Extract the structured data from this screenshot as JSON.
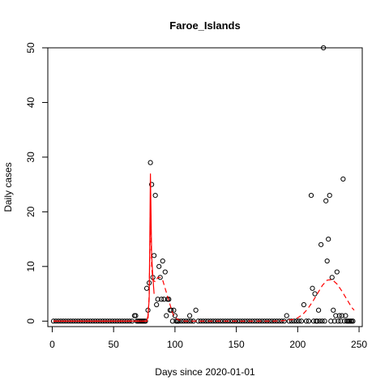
{
  "chart_data": {
    "type": "scatter",
    "title": "Faroe_Islands",
    "xlabel": "Days since 2020-01-01",
    "ylabel": "Daily cases",
    "xlim": [
      -3.6,
      252.6
    ],
    "ylim": [
      -1.0,
      50.0
    ],
    "xticks": [
      0,
      50,
      100,
      150,
      200,
      250
    ],
    "yticks": [
      0,
      10,
      20,
      30,
      40,
      50
    ],
    "points": [
      [
        1,
        0
      ],
      [
        3,
        0
      ],
      [
        5,
        0
      ],
      [
        7,
        0
      ],
      [
        9,
        0
      ],
      [
        11,
        0
      ],
      [
        13,
        0
      ],
      [
        15,
        0
      ],
      [
        17,
        0
      ],
      [
        19,
        0
      ],
      [
        21,
        0
      ],
      [
        23,
        0
      ],
      [
        25,
        0
      ],
      [
        27,
        0
      ],
      [
        29,
        0
      ],
      [
        31,
        0
      ],
      [
        33,
        0
      ],
      [
        35,
        0
      ],
      [
        37,
        0
      ],
      [
        39,
        0
      ],
      [
        41,
        0
      ],
      [
        43,
        0
      ],
      [
        45,
        0
      ],
      [
        47,
        0
      ],
      [
        49,
        0
      ],
      [
        51,
        0
      ],
      [
        53,
        0
      ],
      [
        55,
        0
      ],
      [
        57,
        0
      ],
      [
        59,
        0
      ],
      [
        61,
        0
      ],
      [
        63,
        0
      ],
      [
        65,
        0
      ],
      [
        67,
        1
      ],
      [
        68,
        1
      ],
      [
        69,
        0
      ],
      [
        70,
        0
      ],
      [
        71,
        0
      ],
      [
        72,
        0
      ],
      [
        73,
        0
      ],
      [
        74,
        0
      ],
      [
        75,
        0
      ],
      [
        76,
        0
      ],
      [
        77,
        6
      ],
      [
        78,
        2
      ],
      [
        79,
        7
      ],
      [
        80,
        29
      ],
      [
        81,
        25
      ],
      [
        82,
        8
      ],
      [
        83,
        12
      ],
      [
        84,
        23
      ],
      [
        85,
        3
      ],
      [
        86,
        4
      ],
      [
        87,
        10
      ],
      [
        88,
        8
      ],
      [
        89,
        4
      ],
      [
        90,
        11
      ],
      [
        91,
        4
      ],
      [
        92,
        9
      ],
      [
        93,
        1
      ],
      [
        94,
        4
      ],
      [
        95,
        4
      ],
      [
        96,
        2
      ],
      [
        97,
        2
      ],
      [
        98,
        0
      ],
      [
        99,
        2
      ],
      [
        100,
        1
      ],
      [
        101,
        0
      ],
      [
        102,
        0
      ],
      [
        103,
        0
      ],
      [
        105,
        0
      ],
      [
        107,
        0
      ],
      [
        109,
        0
      ],
      [
        111,
        0
      ],
      [
        112,
        1
      ],
      [
        113,
        0
      ],
      [
        115,
        0
      ],
      [
        117,
        2
      ],
      [
        119,
        0
      ],
      [
        121,
        0
      ],
      [
        123,
        0
      ],
      [
        125,
        0
      ],
      [
        127,
        0
      ],
      [
        129,
        0
      ],
      [
        131,
        0
      ],
      [
        133,
        0
      ],
      [
        135,
        0
      ],
      [
        137,
        0
      ],
      [
        139,
        0
      ],
      [
        141,
        0
      ],
      [
        143,
        0
      ],
      [
        145,
        0
      ],
      [
        147,
        0
      ],
      [
        149,
        0
      ],
      [
        151,
        0
      ],
      [
        153,
        0
      ],
      [
        155,
        0
      ],
      [
        157,
        0
      ],
      [
        159,
        0
      ],
      [
        161,
        0
      ],
      [
        163,
        0
      ],
      [
        165,
        0
      ],
      [
        167,
        0
      ],
      [
        169,
        0
      ],
      [
        171,
        0
      ],
      [
        173,
        0
      ],
      [
        175,
        0
      ],
      [
        177,
        0
      ],
      [
        179,
        0
      ],
      [
        181,
        0
      ],
      [
        183,
        0
      ],
      [
        185,
        0
      ],
      [
        187,
        0
      ],
      [
        189,
        0
      ],
      [
        191,
        1
      ],
      [
        193,
        0
      ],
      [
        195,
        0
      ],
      [
        197,
        0
      ],
      [
        199,
        0
      ],
      [
        201,
        0
      ],
      [
        203,
        0
      ],
      [
        205,
        3
      ],
      [
        207,
        0
      ],
      [
        209,
        0
      ],
      [
        211,
        23
      ],
      [
        212,
        6
      ],
      [
        213,
        0
      ],
      [
        214,
        5
      ],
      [
        215,
        0
      ],
      [
        216,
        0
      ],
      [
        217,
        2
      ],
      [
        218,
        0
      ],
      [
        219,
        14
      ],
      [
        220,
        0
      ],
      [
        221,
        50
      ],
      [
        222,
        0
      ],
      [
        223,
        22
      ],
      [
        224,
        11
      ],
      [
        225,
        15
      ],
      [
        226,
        23
      ],
      [
        227,
        0
      ],
      [
        228,
        8
      ],
      [
        229,
        2
      ],
      [
        230,
        0
      ],
      [
        231,
        1
      ],
      [
        232,
        9
      ],
      [
        233,
        0
      ],
      [
        234,
        1
      ],
      [
        235,
        0
      ],
      [
        236,
        1
      ],
      [
        237,
        26
      ],
      [
        238,
        0
      ],
      [
        239,
        1
      ],
      [
        240,
        0
      ],
      [
        241,
        0
      ],
      [
        242,
        0
      ],
      [
        243,
        0
      ],
      [
        244,
        0
      ],
      [
        245,
        0
      ]
    ],
    "fit_solid": [
      [
        1,
        0
      ],
      [
        77,
        0
      ],
      [
        78,
        1
      ],
      [
        79,
        4
      ],
      [
        80,
        27
      ],
      [
        81,
        12
      ],
      [
        82,
        8
      ],
      [
        83,
        5
      ]
    ],
    "fit_dashed": [
      [
        1,
        0
      ],
      [
        78,
        0
      ],
      [
        79,
        5
      ],
      [
        80,
        19
      ],
      [
        81,
        10
      ],
      [
        82,
        7.5
      ],
      [
        84,
        7.2
      ],
      [
        86,
        8
      ],
      [
        88,
        8
      ],
      [
        90,
        7.5
      ],
      [
        92,
        6
      ],
      [
        94,
        4.5
      ],
      [
        96,
        3
      ],
      [
        98,
        1.5
      ],
      [
        100,
        0.7
      ],
      [
        103,
        0.2
      ],
      [
        108,
        0
      ],
      [
        180,
        0
      ],
      [
        190,
        0.1
      ],
      [
        196,
        0.3
      ],
      [
        200,
        0.6
      ],
      [
        204,
        1.2
      ],
      [
        208,
        2.2
      ],
      [
        212,
        3.5
      ],
      [
        216,
        5
      ],
      [
        220,
        6.5
      ],
      [
        224,
        7.5
      ],
      [
        228,
        7.6
      ],
      [
        232,
        6.8
      ],
      [
        236,
        5.5
      ],
      [
        240,
        4
      ],
      [
        244,
        2.5
      ],
      [
        246,
        2
      ]
    ]
  }
}
